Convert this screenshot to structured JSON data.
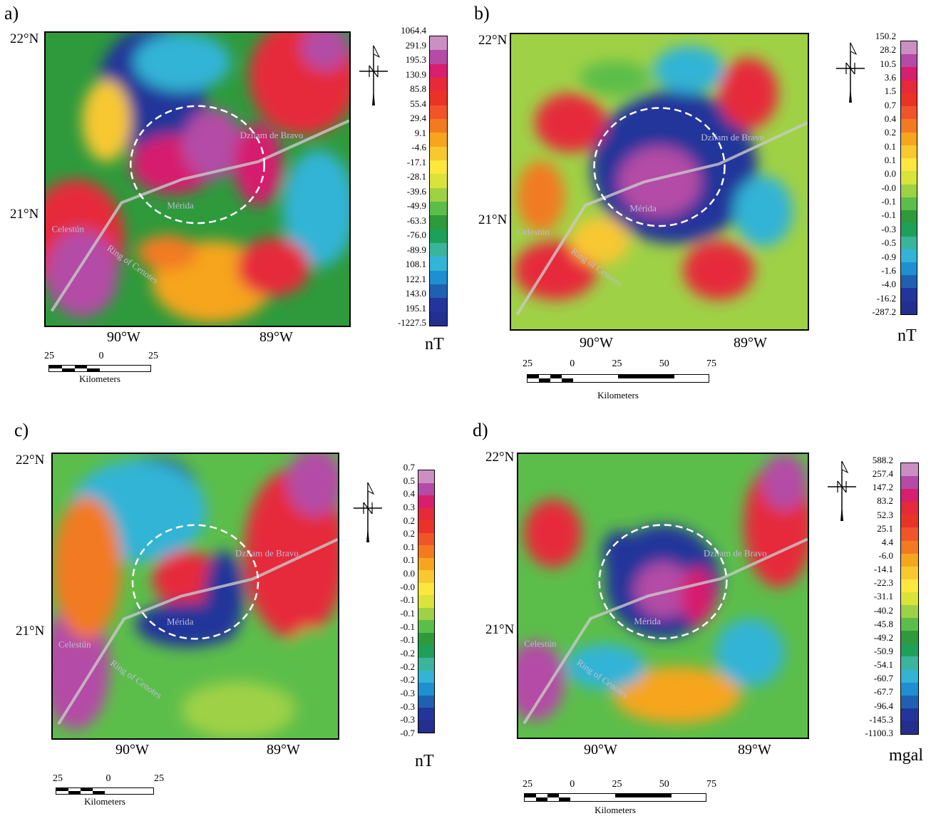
{
  "panels": [
    {
      "letter": "a)",
      "lat_top": "22°N",
      "lat_mid": "21°N",
      "lon_left": "90°W",
      "lon_right": "89°W",
      "unit": "nT",
      "labels": [
        "Dzilam de Bravo",
        "Mérida",
        "Celestún",
        "Ring of Cenotes"
      ],
      "scale_numbers": [
        "25",
        "0",
        "25"
      ],
      "scale_units": "Kilometers",
      "colorbar": [
        "1064.4",
        "291.9",
        "195.3",
        "130.9",
        "85.8",
        "55.4",
        "29.4",
        "9.1",
        "-4.6",
        "-17.1",
        "-28.1",
        "-39.6",
        "-49.9",
        "-63.3",
        "-76.0",
        "-89.9",
        "108.1",
        "122.1",
        "143.0",
        "195.1",
        "-1227.5"
      ]
    },
    {
      "letter": "b)",
      "lat_top": "22°N",
      "lat_mid": "21°N",
      "lon_left": "90°W",
      "lon_right": "89°W",
      "unit": "nT",
      "labels": [
        "Dzilam de Bravo",
        "Mérida",
        "Celestún",
        "Ring of Cenotes"
      ],
      "scale_numbers": [
        "25",
        "0",
        "25",
        "50",
        "75"
      ],
      "scale_units": "Kilometers",
      "colorbar": [
        "150.2",
        "28.2",
        "10.5",
        "3.6",
        "1.5",
        "0.7",
        "0.4",
        "0.2",
        "0.1",
        "0.1",
        "0.0",
        "-0.0",
        "-0.1",
        "-0.1",
        "-0.3",
        "-0.5",
        "-0.9",
        "-1.6",
        "-4.0",
        "-16.2",
        "-287.2"
      ]
    },
    {
      "letter": "c)",
      "lat_top": "22°N",
      "lat_mid": "21°N",
      "lon_left": "90°W",
      "lon_right": "89°W",
      "unit": "nT",
      "labels": [
        "Dzilam de Bravo",
        "Mérida",
        "Celestún",
        "Ring of Cenotes"
      ],
      "scale_numbers": [
        "25",
        "0",
        "25"
      ],
      "scale_units": "Kilometers",
      "colorbar": [
        "0.7",
        "0.5",
        "0.4",
        "0.3",
        "0.2",
        "0.2",
        "0.1",
        "0.1",
        "0.0",
        "-0.0",
        "-0.1",
        "-0.1",
        "-0.1",
        "-0.1",
        "-0.2",
        "-0.2",
        "-0.2",
        "-0.3",
        "-0.3",
        "-0.3",
        "-0.7"
      ]
    },
    {
      "letter": "d)",
      "lat_top": "22°N",
      "lat_mid": "21°N",
      "lon_left": "90°W",
      "lon_right": "89°W",
      "unit": "mgal",
      "labels": [
        "Dzilam de Bravo",
        "Mérida",
        "Celestún",
        "Ring of Cenotes"
      ],
      "scale_numbers": [
        "25",
        "0",
        "25",
        "50",
        "75"
      ],
      "scale_units": "Kilometers",
      "colorbar": [
        "588.2",
        "257.4",
        "147.2",
        "83.2",
        "52.3",
        "25.1",
        "4.4",
        "-6.0",
        "-14.1",
        "-22.3",
        "-31.1",
        "-40.2",
        "-45.8",
        "-49.2",
        "-50.9",
        "-54.1",
        "-60.7",
        "-67.7",
        "-96.4",
        "-145.3",
        "-1100.3"
      ]
    }
  ],
  "colors": {
    "ramp": [
      "#cc8fc4",
      "#b44ba6",
      "#d61f6e",
      "#e62a3a",
      "#ea3327",
      "#f0552a",
      "#f27a22",
      "#f6a51f",
      "#f8c830",
      "#fbe73d",
      "#d9e33a",
      "#9fd146",
      "#5cbe4a",
      "#2e9a3c",
      "#1fa05a",
      "#3ab59b",
      "#33b4d6",
      "#1e8fd0",
      "#1f61b0",
      "#23349a",
      "#242e8c"
    ]
  }
}
